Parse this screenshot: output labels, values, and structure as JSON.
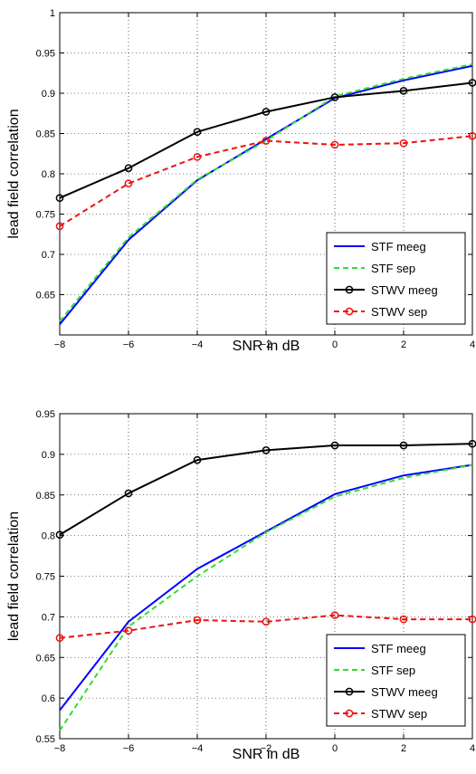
{
  "chart_data": [
    {
      "type": "line",
      "xlabel": "SNR in dB",
      "ylabel": "lead field correlation",
      "x": [
        -8,
        -6,
        -4,
        -2,
        0,
        2,
        4
      ],
      "xlim": [
        -8,
        4
      ],
      "ylim": [
        0.6,
        1.0
      ],
      "xticks": [
        "−8",
        "−6",
        "−4",
        "−2",
        "0",
        "2",
        "4"
      ],
      "yticks": [
        "0.65",
        "0.7",
        "0.75",
        "0.8",
        "0.85",
        "0.9",
        "0.95",
        "1"
      ],
      "yticks_values": [
        0.65,
        0.7,
        0.75,
        0.8,
        0.85,
        0.9,
        0.95,
        1.0
      ],
      "grid": true,
      "legend_position": "bottom-right",
      "series": [
        {
          "name": "STF meeg",
          "color": "#0000ff",
          "dash": "solid",
          "marker": "none",
          "values": [
            0.613,
            0.718,
            0.792,
            0.843,
            0.894,
            0.916,
            0.934
          ]
        },
        {
          "name": "STF sep",
          "color": "#33dd33",
          "dash": "dashed",
          "marker": "none",
          "values": [
            0.617,
            0.721,
            0.793,
            0.841,
            0.896,
            0.918,
            0.936
          ]
        },
        {
          "name": "STWV meeg",
          "color": "#000000",
          "dash": "solid",
          "marker": "circle",
          "values": [
            0.77,
            0.807,
            0.852,
            0.877,
            0.895,
            0.903,
            0.913
          ]
        },
        {
          "name": "STWV sep",
          "color": "#ee1111",
          "dash": "dashed",
          "marker": "circle",
          "values": [
            0.735,
            0.788,
            0.821,
            0.841,
            0.836,
            0.838,
            0.847
          ]
        }
      ]
    },
    {
      "type": "line",
      "xlabel": "SNR in dB",
      "ylabel": "lead field correlation",
      "x": [
        -8,
        -6,
        -4,
        -2,
        0,
        2,
        4
      ],
      "xlim": [
        -8,
        4
      ],
      "ylim": [
        0.55,
        0.95
      ],
      "xticks": [
        "−8",
        "−6",
        "−4",
        "−2",
        "0",
        "2",
        "4"
      ],
      "yticks": [
        "0.55",
        "0.6",
        "0.65",
        "0.7",
        "0.75",
        "0.8",
        "0.85",
        "0.9",
        "0.95"
      ],
      "yticks_values": [
        0.55,
        0.6,
        0.65,
        0.7,
        0.75,
        0.8,
        0.85,
        0.9,
        0.95
      ],
      "grid": true,
      "legend_position": "bottom-right",
      "series": [
        {
          "name": "STF meeg",
          "color": "#0000ff",
          "dash": "solid",
          "marker": "none",
          "values": [
            0.585,
            0.694,
            0.759,
            0.805,
            0.851,
            0.874,
            0.887
          ]
        },
        {
          "name": "STF sep",
          "color": "#33dd33",
          "dash": "dashed",
          "marker": "none",
          "values": [
            0.56,
            0.688,
            0.75,
            0.804,
            0.848,
            0.871,
            0.887
          ]
        },
        {
          "name": "STWV meeg",
          "color": "#000000",
          "dash": "solid",
          "marker": "circle",
          "values": [
            0.801,
            0.852,
            0.893,
            0.905,
            0.911,
            0.911,
            0.913
          ]
        },
        {
          "name": "STWV sep",
          "color": "#ee1111",
          "dash": "dashed",
          "marker": "circle",
          "values": [
            0.674,
            0.683,
            0.696,
            0.694,
            0.702,
            0.697,
            0.697
          ]
        }
      ]
    }
  ]
}
